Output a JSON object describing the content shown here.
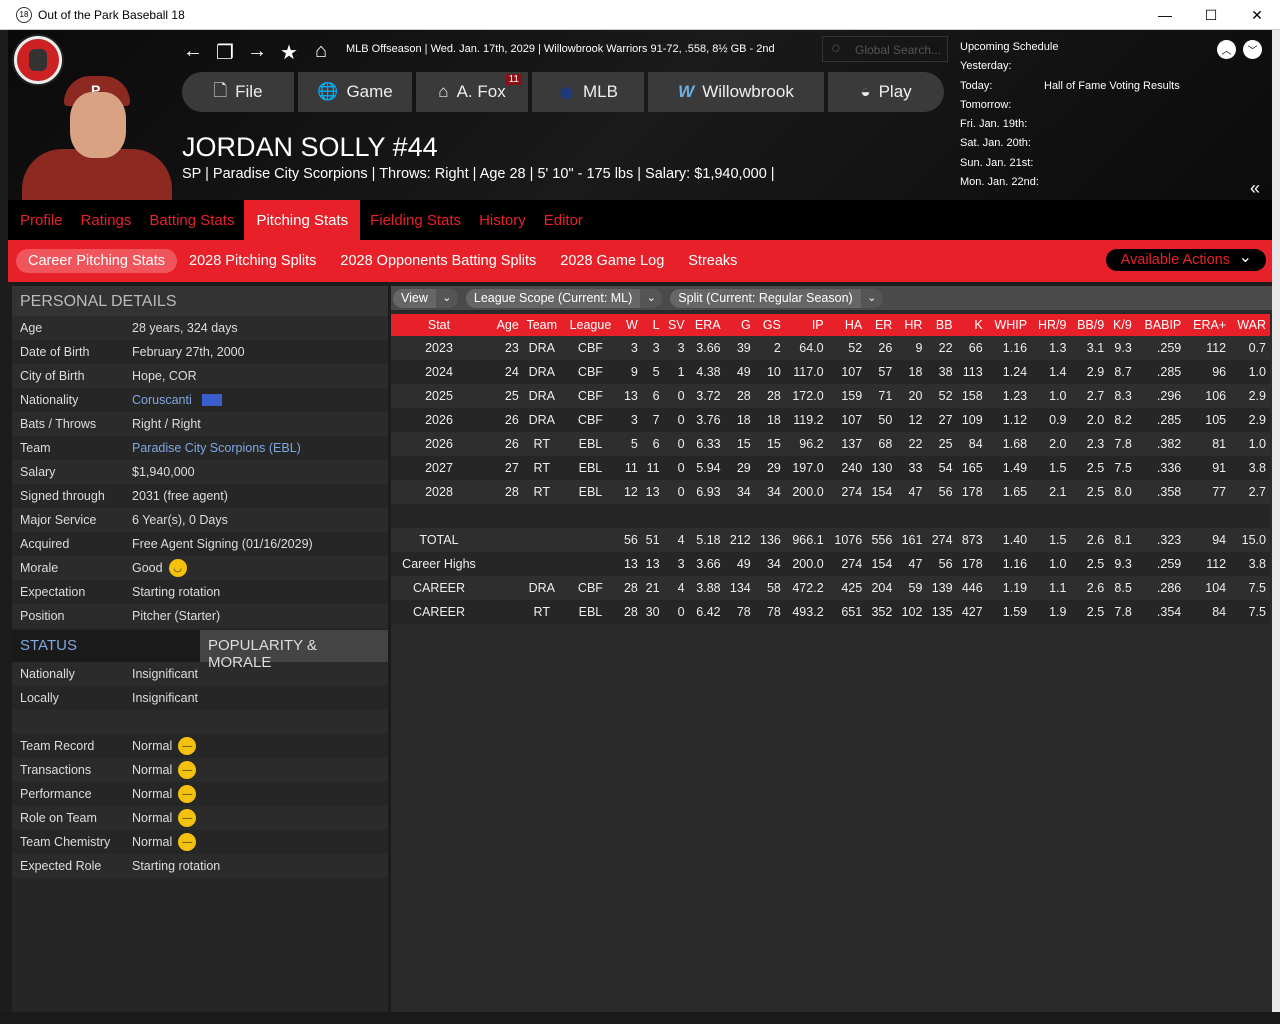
{
  "window": {
    "title": "Out of the Park Baseball 18",
    "icon_text": "18"
  },
  "header": {
    "status_line": "MLB Offseason  |  Wed. Jan. 17th, 2029  |  Willowbrook Warriors   91-72, .558, 8½ GB - 2nd",
    "search_placeholder": "Global Search...",
    "nav": [
      {
        "label": "File",
        "icon": "file-icon"
      },
      {
        "label": "Game",
        "icon": "globe-icon"
      },
      {
        "label": "A. Fox",
        "icon": "home-icon",
        "badge": "11"
      },
      {
        "label": "MLB",
        "icon": "mlb-logo-icon"
      },
      {
        "label": "Willowbrook",
        "icon": "team-logo-icon"
      },
      {
        "label": "Play",
        "icon": "baseball-icon"
      }
    ],
    "cap_letter": "P"
  },
  "player": {
    "name": "JORDAN SOLLY  #44",
    "info": "SP | Paradise City Scorpions  |  Throws: Right  |  Age 28  |  5' 10\" - 175 lbs  |  Salary: $1,940,000  |"
  },
  "schedule": {
    "title": "Upcoming Schedule",
    "rows": [
      {
        "d": "Yesterday:",
        "e": ""
      },
      {
        "d": "Today:",
        "e": "Hall of Fame Voting Results"
      },
      {
        "d": "Tomorrow:",
        "e": ""
      },
      {
        "d": "Fri. Jan. 19th:",
        "e": ""
      },
      {
        "d": "Sat. Jan. 20th:",
        "e": ""
      },
      {
        "d": "Sun. Jan. 21st:",
        "e": ""
      },
      {
        "d": "Mon. Jan. 22nd:",
        "e": ""
      }
    ]
  },
  "tabs": [
    "Profile",
    "Ratings",
    "Batting Stats",
    "Pitching Stats",
    "Fielding Stats",
    "History",
    "Editor"
  ],
  "active_tab": "Pitching Stats",
  "subtabs": [
    "Career Pitching Stats",
    "2028 Pitching Splits",
    "2028 Opponents Batting Splits",
    "2028 Game Log",
    "Streaks"
  ],
  "available_actions": "Available Actions",
  "personal": {
    "title": "PERSONAL DETAILS",
    "rows": [
      {
        "k": "Age",
        "v": "28 years, 324 days"
      },
      {
        "k": "Date of Birth",
        "v": "February 27th, 2000"
      },
      {
        "k": "City of Birth",
        "v": "Hope, COR"
      },
      {
        "k": "Nationality",
        "v": "Coruscanti",
        "link": true,
        "flag": true
      },
      {
        "k": "Bats / Throws",
        "v": "Right / Right"
      },
      {
        "k": "Team",
        "v": "Paradise City Scorpions (EBL)",
        "link": true
      },
      {
        "k": "Salary",
        "v": "$1,940,000"
      },
      {
        "k": "Signed through",
        "v": "2031 (free agent)"
      },
      {
        "k": "Major Service",
        "v": "6 Year(s), 0 Days"
      },
      {
        "k": "Acquired",
        "v": "Free Agent Signing (01/16/2029)"
      },
      {
        "k": "Morale",
        "v": "Good",
        "mood": "happy"
      },
      {
        "k": "Expectation",
        "v": "Starting rotation"
      },
      {
        "k": "Position",
        "v": "Pitcher (Starter)"
      }
    ]
  },
  "status": {
    "tab_status": "STATUS",
    "tab_pop": "POPULARITY & MORALE",
    "rows": [
      {
        "k": "Nationally",
        "v": "Insignificant"
      },
      {
        "k": "Locally",
        "v": "Insignificant"
      },
      {
        "k": "",
        "v": ""
      },
      {
        "k": "Team Record",
        "v": "Normal",
        "mood": "neutral"
      },
      {
        "k": "Transactions",
        "v": "Normal",
        "mood": "neutral"
      },
      {
        "k": "Performance",
        "v": "Normal",
        "mood": "neutral"
      },
      {
        "k": "Role on Team",
        "v": "Normal",
        "mood": "neutral"
      },
      {
        "k": "Team Chemistry",
        "v": "Normal",
        "mood": "neutral"
      },
      {
        "k": "Expected Role",
        "v": "Starting rotation"
      }
    ]
  },
  "filters": [
    {
      "label": "View"
    },
    {
      "label": "League Scope  (Current: ML)"
    },
    {
      "label": "Split  (Current: Regular Season)"
    }
  ],
  "stats": {
    "columns": [
      "Stat",
      "Age",
      "Team",
      "League",
      "W",
      "L",
      "SV",
      "ERA",
      "G",
      "GS",
      "IP",
      "HA",
      "ER",
      "HR",
      "BB",
      "K",
      "WHIP",
      "HR/9",
      "BB/9",
      "K/9",
      "BABIP",
      "ERA+",
      "WAR"
    ],
    "rows": [
      [
        "2023",
        "23",
        "DRA",
        "CBF",
        "3",
        "3",
        "3",
        "3.66",
        "39",
        "2",
        "64.0",
        "52",
        "26",
        "9",
        "22",
        "66",
        "1.16",
        "1.3",
        "3.1",
        "9.3",
        ".259",
        "112",
        "0.7"
      ],
      [
        "2024",
        "24",
        "DRA",
        "CBF",
        "9",
        "5",
        "1",
        "4.38",
        "49",
        "10",
        "117.0",
        "107",
        "57",
        "18",
        "38",
        "113",
        "1.24",
        "1.4",
        "2.9",
        "8.7",
        ".285",
        "96",
        "1.0"
      ],
      [
        "2025",
        "25",
        "DRA",
        "CBF",
        "13",
        "6",
        "0",
        "3.72",
        "28",
        "28",
        "172.0",
        "159",
        "71",
        "20",
        "52",
        "158",
        "1.23",
        "1.0",
        "2.7",
        "8.3",
        ".296",
        "106",
        "2.9"
      ],
      [
        "2026",
        "26",
        "DRA",
        "CBF",
        "3",
        "7",
        "0",
        "3.76",
        "18",
        "18",
        "119.2",
        "107",
        "50",
        "12",
        "27",
        "109",
        "1.12",
        "0.9",
        "2.0",
        "8.2",
        ".285",
        "105",
        "2.9"
      ],
      [
        "2026",
        "26",
        "RT",
        "EBL",
        "5",
        "6",
        "0",
        "6.33",
        "15",
        "15",
        "96.2",
        "137",
        "68",
        "22",
        "25",
        "84",
        "1.68",
        "2.0",
        "2.3",
        "7.8",
        ".382",
        "81",
        "1.0"
      ],
      [
        "2027",
        "27",
        "RT",
        "EBL",
        "11",
        "11",
        "0",
        "5.94",
        "29",
        "29",
        "197.0",
        "240",
        "130",
        "33",
        "54",
        "165",
        "1.49",
        "1.5",
        "2.5",
        "7.5",
        ".336",
        "91",
        "3.8"
      ],
      [
        "2028",
        "28",
        "RT",
        "EBL",
        "12",
        "13",
        "0",
        "6.93",
        "34",
        "34",
        "200.0",
        "274",
        "154",
        "47",
        "56",
        "178",
        "1.65",
        "2.1",
        "2.5",
        "8.0",
        ".358",
        "77",
        "2.7"
      ],
      [
        "",
        "",
        "",
        "",
        "",
        "",
        "",
        "",
        "",
        "",
        "",
        "",
        "",
        "",
        "",
        "",
        "",
        "",
        "",
        "",
        "",
        "",
        ""
      ],
      [
        "TOTAL",
        "",
        "",
        "",
        "56",
        "51",
        "4",
        "5.18",
        "212",
        "136",
        "966.1",
        "1076",
        "556",
        "161",
        "274",
        "873",
        "1.40",
        "1.5",
        "2.6",
        "8.1",
        ".323",
        "94",
        "15.0"
      ],
      [
        "Career Highs",
        "",
        "",
        "",
        "13",
        "13",
        "3",
        "3.66",
        "49",
        "34",
        "200.0",
        "274",
        "154",
        "47",
        "56",
        "178",
        "1.16",
        "1.0",
        "2.5",
        "9.3",
        ".259",
        "112",
        "3.8"
      ],
      [
        "CAREER",
        "",
        "DRA",
        "CBF",
        "28",
        "21",
        "4",
        "3.88",
        "134",
        "58",
        "472.2",
        "425",
        "204",
        "59",
        "139",
        "446",
        "1.19",
        "1.1",
        "2.6",
        "8.5",
        ".286",
        "104",
        "7.5"
      ],
      [
        "CAREER",
        "",
        "RT",
        "EBL",
        "28",
        "30",
        "0",
        "6.42",
        "78",
        "78",
        "493.2",
        "651",
        "352",
        "102",
        "135",
        "427",
        "1.59",
        "1.9",
        "2.5",
        "7.8",
        ".354",
        "84",
        "7.5"
      ]
    ]
  },
  "colors": {
    "accent": "#e8202a",
    "link": "#7fa8e0",
    "panel": "#262626"
  }
}
